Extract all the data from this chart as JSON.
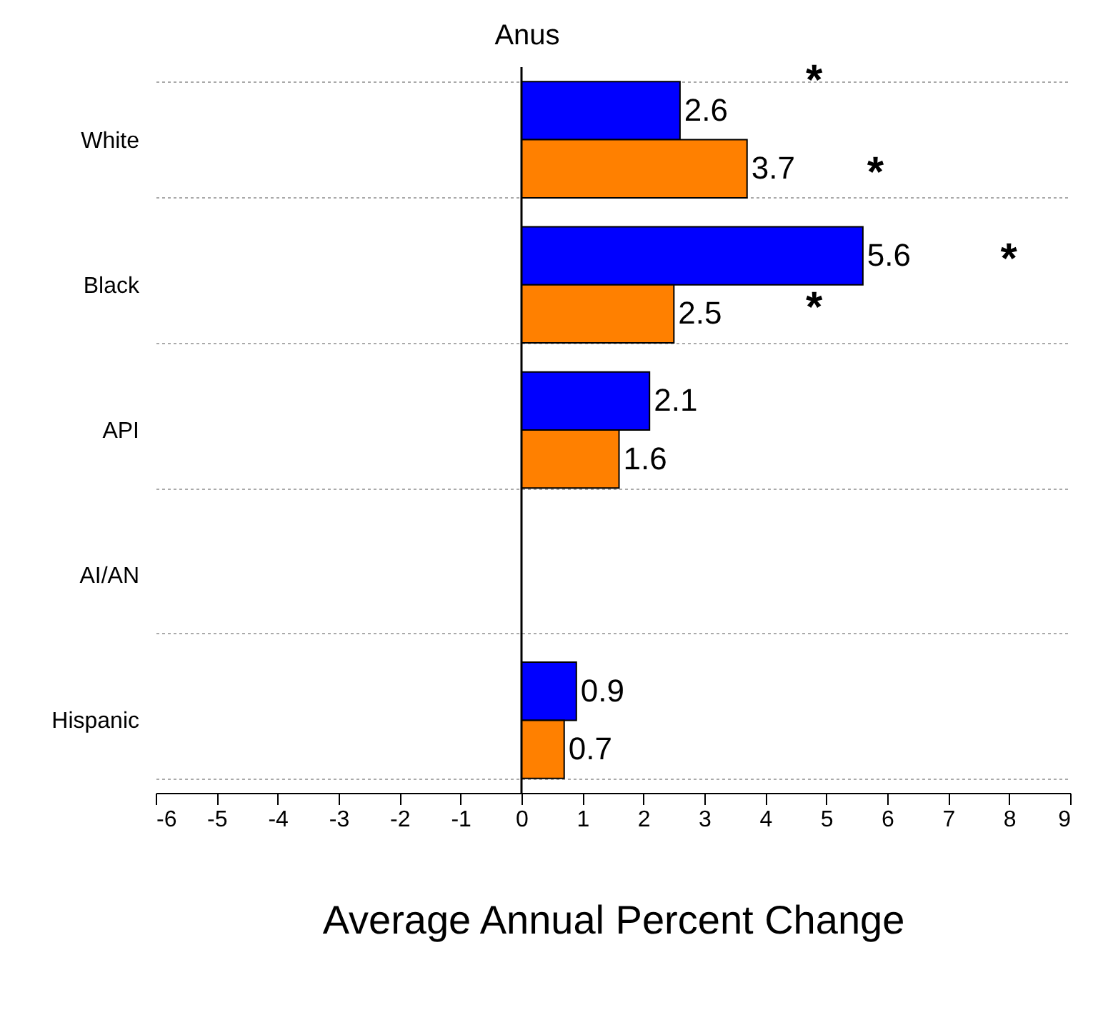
{
  "chart_data": {
    "type": "bar",
    "orientation": "horizontal",
    "title": "Anus",
    "xlabel": "Average Annual Percent Change",
    "categories": [
      "White",
      "Black",
      "API",
      "AI/AN",
      "Hispanic"
    ],
    "series": [
      {
        "color": "#0000ff",
        "values": [
          2.6,
          5.6,
          2.1,
          null,
          0.9
        ]
      },
      {
        "color": "#ff8000",
        "values": [
          3.7,
          2.5,
          1.6,
          null,
          0.7
        ]
      }
    ],
    "xlim": [
      -6,
      9
    ],
    "xticks": [
      -6,
      -5,
      -4,
      -3,
      -2,
      -1,
      0,
      1,
      2,
      3,
      4,
      5,
      6,
      7,
      8,
      9
    ],
    "data_labels": true,
    "grid": "y",
    "legend": false,
    "ref_lines": [
      {
        "axis": "x",
        "value": 0,
        "color": "#000000"
      }
    ],
    "annotations": [
      "*",
      "*",
      "*",
      "*"
    ]
  }
}
